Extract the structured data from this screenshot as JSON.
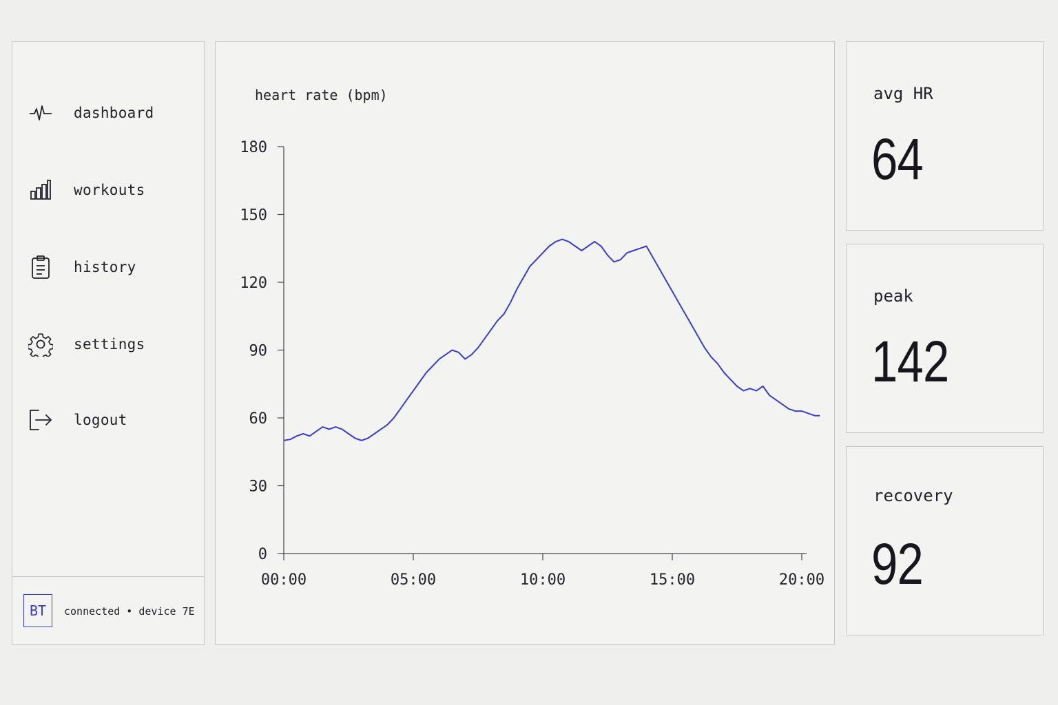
{
  "sidebar": {
    "items": [
      {
        "label": "dashboard",
        "icon": "pulse-icon"
      },
      {
        "label": "workouts",
        "icon": "bar-chart-icon"
      },
      {
        "label": "history",
        "icon": "clipboard-icon"
      },
      {
        "label": "settings",
        "icon": "gear-icon"
      },
      {
        "label": "logout",
        "icon": "logout-icon"
      }
    ],
    "footer": {
      "badge": "BT",
      "status": "connected • device 7E"
    }
  },
  "stats": {
    "avg": {
      "label": "avg HR",
      "value": "64"
    },
    "peak": {
      "label": "peak",
      "value": "142"
    },
    "recovery": {
      "label": "recovery",
      "value": "92"
    }
  },
  "colors": {
    "accent": "#3b3bc9",
    "background": "#efefee",
    "panel": "#f3f3f2",
    "border": "#c7c7c7"
  },
  "chart_data": {
    "type": "line",
    "title": "heart rate (bpm)",
    "xlabel": "",
    "ylabel": "",
    "ylim": [
      0,
      180
    ],
    "yticks": [
      0,
      30,
      60,
      90,
      120,
      150,
      180
    ],
    "xlim": [
      0,
      20.7
    ],
    "xticks": [
      {
        "value": 0,
        "label": "00:00"
      },
      {
        "value": 5,
        "label": "05:00"
      },
      {
        "value": 10,
        "label": "10:00"
      },
      {
        "value": 15,
        "label": "15:00"
      },
      {
        "value": 20,
        "label": "20:00"
      }
    ],
    "grid": false,
    "series": [
      {
        "color": "#3b3bc9",
        "x": [
          0,
          0.25,
          0.5,
          0.75,
          1.0,
          1.25,
          1.5,
          1.75,
          2.0,
          2.25,
          2.5,
          2.75,
          3.0,
          3.25,
          3.5,
          3.75,
          4.0,
          4.25,
          4.5,
          4.75,
          5.0,
          5.25,
          5.5,
          5.75,
          6.0,
          6.25,
          6.5,
          6.75,
          7.0,
          7.25,
          7.5,
          7.75,
          8.0,
          8.25,
          8.5,
          8.75,
          9.0,
          9.25,
          9.5,
          9.75,
          10.0,
          10.25,
          10.5,
          10.75,
          11.0,
          11.25,
          11.5,
          11.75,
          12.0,
          12.25,
          12.5,
          12.75,
          13.0,
          13.25,
          13.5,
          13.75,
          14.0,
          14.25,
          14.5,
          14.75,
          15.0,
          15.25,
          15.5,
          15.75,
          16.0,
          16.25,
          16.5,
          16.75,
          17.0,
          17.25,
          17.5,
          17.75,
          18.0,
          18.25,
          18.5,
          18.75,
          19.0,
          19.25,
          19.5,
          19.75,
          20.0,
          20.25,
          20.5,
          20.7
        ],
        "values": [
          50,
          50.5,
          52,
          53,
          52,
          54,
          56,
          55,
          56,
          55,
          53,
          51,
          50,
          51,
          53,
          55,
          57,
          60,
          64,
          68,
          72,
          76,
          80,
          83,
          86,
          88,
          90,
          89,
          86,
          88,
          91,
          95,
          99,
          103,
          106,
          111,
          117,
          122,
          127,
          130,
          133,
          136,
          138,
          139,
          138,
          136,
          134,
          136,
          138,
          136,
          132,
          129,
          130,
          133,
          134,
          135,
          136,
          131,
          126,
          121,
          116,
          111,
          106,
          101,
          96,
          91,
          87,
          84,
          80,
          77,
          74,
          72,
          73,
          72,
          74,
          70,
          68,
          66,
          64,
          63,
          63,
          62,
          61,
          61
        ]
      }
    ]
  }
}
